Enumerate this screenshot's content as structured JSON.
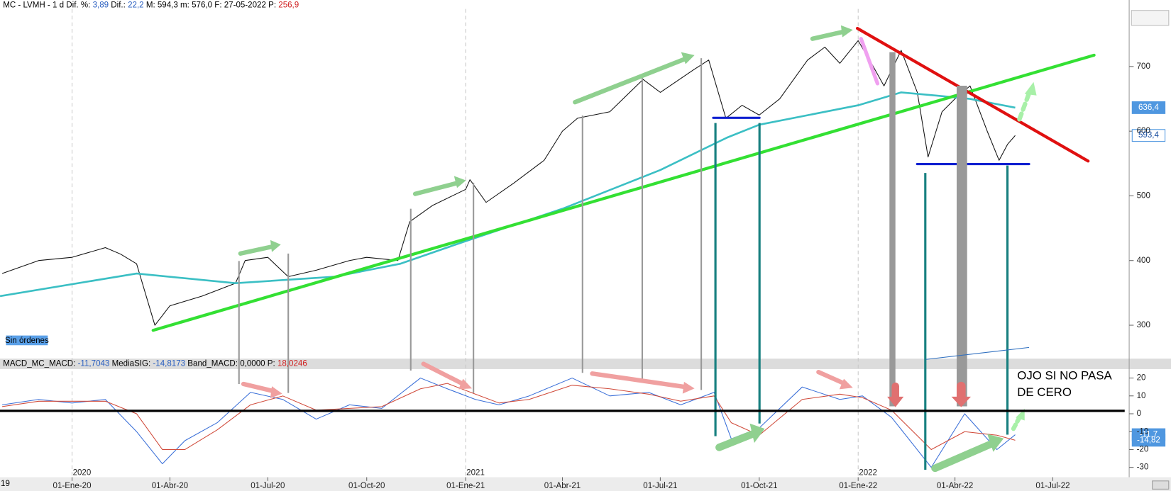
{
  "chart_data": [
    {
      "type": "line",
      "header": [
        {
          "text": "MC - LVMH - 1 d",
          "color": "#000000"
        },
        {
          "text": "Dif. %:",
          "color": "#000000"
        },
        {
          "text": "3,89",
          "color": "#2a5fc0"
        },
        {
          "text": "Dif.:",
          "color": "#000000"
        },
        {
          "text": "22,2",
          "color": "#2a5fc0"
        },
        {
          "text": "M: 594,3",
          "color": "#000000"
        },
        {
          "text": "m: 576,0",
          "color": "#000000"
        },
        {
          "text": "F: 27-05-2022",
          "color": "#000000"
        },
        {
          "text": "P:",
          "color": "#000000"
        },
        {
          "text": "256,9",
          "color": "#d02020"
        }
      ],
      "orders_label": "Sin órdenes",
      "xlim": [
        "2019-10-26",
        "2022-09-10"
      ],
      "xticks": [
        {
          "value": "2020-01-01",
          "label": "01-Ene-20"
        },
        {
          "value": "2020-04-01",
          "label": "01-Abr-20"
        },
        {
          "value": "2020-07-01",
          "label": "01-Jul-20"
        },
        {
          "value": "2020-10-01",
          "label": "01-Oct-20"
        },
        {
          "value": "2021-01-01",
          "label": "01-Ene-21"
        },
        {
          "value": "2021-04-01",
          "label": "01-Abr-21"
        },
        {
          "value": "2021-07-01",
          "label": "01-Jul-21"
        },
        {
          "value": "2021-10-01",
          "label": "01-Oct-21"
        },
        {
          "value": "2022-01-01",
          "label": "01-Ene-22"
        },
        {
          "value": "2022-04-01",
          "label": "01-Abr-22"
        },
        {
          "value": "2022-07-01",
          "label": "01-Jul-22"
        }
      ],
      "year_ticks": [
        {
          "value": "2020-01-01",
          "label": "2020"
        },
        {
          "value": "2021-01-01",
          "label": "2021"
        },
        {
          "value": "2022-01-01",
          "label": "2022"
        }
      ],
      "left_cut_label": "19",
      "ylim": [
        246,
        789
      ],
      "yticks": [
        300,
        400,
        500,
        600,
        700
      ],
      "series": [
        {
          "name": "LVMH",
          "color": "#111111",
          "x": [
            "2019-10-28",
            "2019-12-01",
            "2020-01-01",
            "2020-02-01",
            "2020-02-15",
            "2020-03-01",
            "2020-03-18",
            "2020-04-01",
            "2020-05-01",
            "2020-06-01",
            "2020-06-10",
            "2020-07-01",
            "2020-07-20",
            "2020-08-15",
            "2020-09-15",
            "2020-10-01",
            "2020-10-30",
            "2020-11-10",
            "2020-12-01",
            "2021-01-01",
            "2021-01-05",
            "2021-01-20",
            "2021-02-15",
            "2021-03-15",
            "2021-04-01",
            "2021-04-15",
            "2021-05-15",
            "2021-06-15",
            "2021-07-01",
            "2021-08-01",
            "2021-08-15",
            "2021-08-31",
            "2021-09-15",
            "2021-10-01",
            "2021-10-20",
            "2021-11-15",
            "2021-12-01",
            "2021-12-15",
            "2022-01-01",
            "2022-01-15",
            "2022-01-25",
            "2022-02-10",
            "2022-02-25",
            "2022-03-07",
            "2022-03-20",
            "2022-04-01",
            "2022-04-15",
            "2022-05-01",
            "2022-05-12",
            "2022-05-20",
            "2022-05-27"
          ],
          "values": [
            380,
            400,
            405,
            420,
            410,
            395,
            300,
            330,
            345,
            365,
            400,
            405,
            375,
            385,
            400,
            405,
            400,
            460,
            485,
            510,
            525,
            490,
            520,
            555,
            600,
            620,
            630,
            680,
            660,
            695,
            710,
            620,
            640,
            625,
            650,
            710,
            730,
            705,
            740,
            700,
            670,
            725,
            660,
            560,
            630,
            650,
            670,
            600,
            555,
            580,
            593.4
          ],
          "tag": {
            "value": 593.4,
            "label": "593,4"
          }
        },
        {
          "name": "MA",
          "color": "#3bbfc4",
          "x": [
            "2019-10-26",
            "2020-03-01",
            "2020-06-01",
            "2020-09-01",
            "2020-11-01",
            "2021-01-01",
            "2021-04-01",
            "2021-07-01",
            "2021-09-01",
            "2021-10-01",
            "2022-01-01",
            "2022-02-10",
            "2022-03-15",
            "2022-04-15",
            "2022-05-27"
          ],
          "values": [
            345,
            380,
            365,
            375,
            395,
            430,
            480,
            540,
            590,
            610,
            640,
            660,
            655,
            650,
            636.4
          ],
          "tag": {
            "value": 636.4,
            "label": "636,4"
          }
        }
      ]
    },
    {
      "type": "line",
      "header": [
        {
          "text": "MACD_MC_MACD:",
          "color": "#000000"
        },
        {
          "text": "-11,7043",
          "color": "#2a5fc0"
        },
        {
          "text": "MediaSIG:",
          "color": "#000000"
        },
        {
          "text": "-14,8173",
          "color": "#2a5fc0"
        },
        {
          "text": "Band_MACD: 0,0000",
          "color": "#000000"
        },
        {
          "text": "P:",
          "color": "#000000"
        },
        {
          "text": "18,0246",
          "color": "#d02020"
        }
      ],
      "annotation": "OJO SI NO PASA DE CERO",
      "xlim": [
        "2019-10-26",
        "2022-09-10"
      ],
      "ylim": [
        -35.5,
        25
      ],
      "yticks": [
        -30,
        -20,
        -10,
        0,
        10,
        20
      ],
      "series": [
        {
          "name": "MACD",
          "color": "#3a6fd8",
          "x": [
            "2019-10-28",
            "2019-12-01",
            "2020-01-01",
            "2020-02-01",
            "2020-03-01",
            "2020-03-25",
            "2020-04-15",
            "2020-05-15",
            "2020-06-15",
            "2020-07-15",
            "2020-08-15",
            "2020-09-15",
            "2020-10-15",
            "2020-11-20",
            "2020-12-15",
            "2021-01-10",
            "2021-02-01",
            "2021-03-01",
            "2021-04-10",
            "2021-05-15",
            "2021-06-20",
            "2021-07-20",
            "2021-08-20",
            "2021-09-05",
            "2021-10-01",
            "2021-11-10",
            "2021-12-15",
            "2022-01-05",
            "2022-02-01",
            "2022-03-10",
            "2022-04-10",
            "2022-05-10",
            "2022-05-27"
          ],
          "values": [
            5,
            8,
            6,
            8,
            -10,
            -28,
            -15,
            -5,
            12,
            8,
            -3,
            5,
            3,
            20,
            14,
            8,
            5,
            10,
            20,
            10,
            12,
            5,
            12,
            -14,
            -8,
            15,
            8,
            10,
            -2,
            -30,
            0,
            -20,
            -11.7
          ],
          "tag": {
            "value": -11.7,
            "label": "-11,7"
          }
        },
        {
          "name": "MediaSIG",
          "color": "#d04a3a",
          "x": [
            "2019-10-28",
            "2019-12-01",
            "2020-01-01",
            "2020-02-01",
            "2020-03-01",
            "2020-03-25",
            "2020-04-15",
            "2020-05-15",
            "2020-06-15",
            "2020-07-15",
            "2020-08-15",
            "2020-09-15",
            "2020-10-15",
            "2020-11-20",
            "2020-12-15",
            "2021-01-10",
            "2021-02-01",
            "2021-03-01",
            "2021-04-10",
            "2021-05-15",
            "2021-06-20",
            "2021-07-20",
            "2021-08-20",
            "2021-09-05",
            "2021-10-01",
            "2021-11-10",
            "2021-12-15",
            "2022-01-05",
            "2022-02-01",
            "2022-03-10",
            "2022-04-10",
            "2022-05-10",
            "2022-05-27"
          ],
          "values": [
            4,
            7,
            7,
            7,
            0,
            -20,
            -20,
            -9,
            5,
            10,
            2,
            3,
            4,
            14,
            17,
            11,
            6,
            8,
            16,
            14,
            11,
            7,
            10,
            -5,
            -12,
            8,
            11,
            9,
            2,
            -20,
            -10,
            -12,
            -14.82
          ],
          "tag": {
            "value": -14.82,
            "label": "-14,82"
          }
        }
      ]
    }
  ]
}
